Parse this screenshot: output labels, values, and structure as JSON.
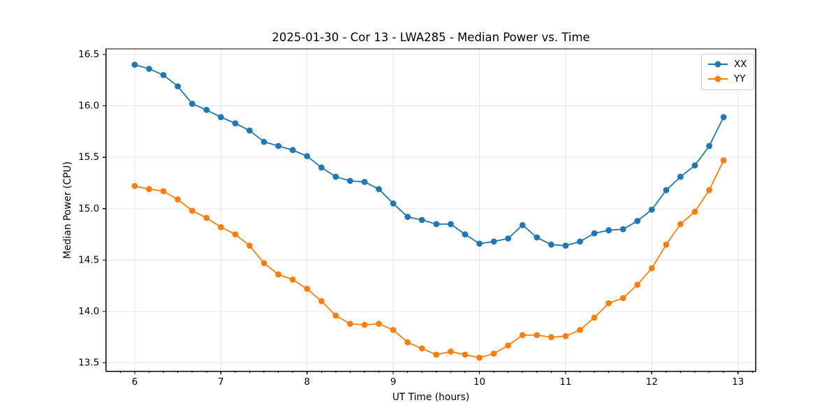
{
  "figure": {
    "background": "#ffffff",
    "spine_color": "#000000",
    "grid_color": "#e6e6e6",
    "text_color": "#000000"
  },
  "chart_data": {
    "type": "line",
    "title": "2025-01-30 - Cor 13 - LWA285 - Median Power vs. Time",
    "xlabel": "UT Time (hours)",
    "ylabel": "Median Power (CPU)",
    "x": [
      6.0,
      6.167,
      6.333,
      6.5,
      6.667,
      6.833,
      7.0,
      7.167,
      7.333,
      7.5,
      7.667,
      7.833,
      8.0,
      8.167,
      8.333,
      8.5,
      8.667,
      8.833,
      9.0,
      9.167,
      9.333,
      9.5,
      9.667,
      9.833,
      10.0,
      10.167,
      10.333,
      10.5,
      10.667,
      10.833,
      11.0,
      11.167,
      11.333,
      11.5,
      11.667,
      11.833,
      12.0,
      12.167,
      12.333,
      12.5,
      12.667,
      12.833
    ],
    "series": [
      {
        "name": "XX",
        "color": "#1f77b4",
        "marker": "circle",
        "values": [
          16.4,
          16.36,
          16.3,
          16.19,
          16.02,
          15.96,
          15.89,
          15.83,
          15.76,
          15.65,
          15.61,
          15.57,
          15.51,
          15.4,
          15.31,
          15.27,
          15.26,
          15.19,
          15.05,
          14.92,
          14.89,
          14.85,
          14.85,
          14.75,
          14.66,
          14.68,
          14.71,
          14.84,
          14.72,
          14.65,
          14.64,
          14.68,
          14.76,
          14.79,
          14.8,
          14.88,
          14.99,
          15.18,
          15.31,
          15.42,
          15.61,
          15.89
        ]
      },
      {
        "name": "YY",
        "color": "#ff7f0e",
        "marker": "circle",
        "values": [
          15.22,
          15.19,
          15.17,
          15.09,
          14.98,
          14.91,
          14.82,
          14.75,
          14.64,
          14.47,
          14.36,
          14.31,
          14.22,
          14.1,
          13.96,
          13.88,
          13.87,
          13.88,
          13.82,
          13.7,
          13.64,
          13.58,
          13.61,
          13.58,
          13.55,
          13.59,
          13.67,
          13.77,
          13.77,
          13.75,
          13.76,
          13.82,
          13.94,
          14.08,
          14.13,
          14.26,
          14.42,
          14.65,
          14.85,
          14.97,
          15.18,
          15.47
        ]
      }
    ],
    "xticks": [
      6,
      7,
      8,
      9,
      10,
      11,
      12,
      13
    ],
    "yticks": [
      13.5,
      14.0,
      14.5,
      15.0,
      15.5,
      16.0,
      16.5
    ],
    "x_minor_tick_step": 0.1667,
    "xlim": [
      5.666,
      13.207
    ],
    "ylim": [
      13.418,
      16.554
    ],
    "grid": true,
    "legend": {
      "position": "upper right",
      "entries": [
        "XX",
        "YY"
      ]
    }
  }
}
